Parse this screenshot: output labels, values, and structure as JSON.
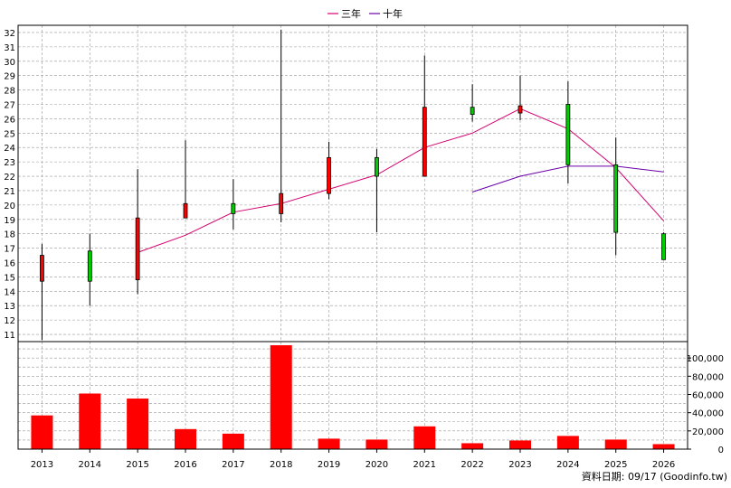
{
  "chart_data": {
    "type": "candlestick-with-volume",
    "legend": [
      {
        "label": "三年",
        "color": "#d4006f"
      },
      {
        "label": "十年",
        "color": "#6a00a8"
      }
    ],
    "years": [
      "2013",
      "2014",
      "2015",
      "2016",
      "2017",
      "2018",
      "2019",
      "2020",
      "2021",
      "2022",
      "2023",
      "2024",
      "2025",
      "2026"
    ],
    "candles": [
      {
        "year": "2013",
        "open": 16.5,
        "close": 14.7,
        "high": 17.3,
        "low": 10.6
      },
      {
        "year": "2014",
        "open": 14.7,
        "close": 16.8,
        "high": 18.0,
        "low": 13.0
      },
      {
        "year": "2015",
        "open": 19.1,
        "close": 14.8,
        "high": 22.5,
        "low": 13.8
      },
      {
        "year": "2016",
        "open": 20.1,
        "close": 19.1,
        "high": 24.5,
        "low": 19.1
      },
      {
        "year": "2017",
        "open": 19.4,
        "close": 20.1,
        "high": 21.8,
        "low": 18.3
      },
      {
        "year": "2018",
        "open": 20.8,
        "close": 19.4,
        "high": 32.2,
        "low": 18.8
      },
      {
        "year": "2019",
        "open": 23.3,
        "close": 20.8,
        "high": 24.4,
        "low": 20.4
      },
      {
        "year": "2020",
        "open": 22.0,
        "close": 23.3,
        "high": 23.9,
        "low": 18.1
      },
      {
        "year": "2021",
        "open": 26.8,
        "close": 22.0,
        "high": 30.4,
        "low": 22.0
      },
      {
        "year": "2022",
        "open": 26.3,
        "close": 26.8,
        "high": 28.4,
        "low": 25.8
      },
      {
        "year": "2023",
        "open": 26.9,
        "close": 26.4,
        "high": 29.0,
        "low": 25.9
      },
      {
        "year": "2024",
        "open": 22.8,
        "close": 27.0,
        "high": 28.6,
        "low": 21.5
      },
      {
        "year": "2025",
        "open": 18.1,
        "close": 22.8,
        "high": 24.7,
        "low": 16.5
      },
      {
        "year": "2026",
        "open": 16.2,
        "close": 18.0,
        "high": 18.1,
        "low": 16.2
      }
    ],
    "three_year_line": [
      {
        "year": "2015",
        "value": 16.7
      },
      {
        "year": "2016",
        "value": 17.9
      },
      {
        "year": "2017",
        "value": 19.5
      },
      {
        "year": "2018",
        "value": 20.1
      },
      {
        "year": "2019",
        "value": 21.1
      },
      {
        "year": "2020",
        "value": 22.1
      },
      {
        "year": "2021",
        "value": 24.0
      },
      {
        "year": "2022",
        "value": 25.0
      },
      {
        "year": "2023",
        "value": 26.7
      },
      {
        "year": "2024",
        "value": 25.3
      },
      {
        "year": "2025",
        "value": 22.6
      },
      {
        "year": "2026",
        "value": 18.9
      }
    ],
    "ten_year_line": [
      {
        "year": "2022",
        "value": 20.9
      },
      {
        "year": "2023",
        "value": 22.0
      },
      {
        "year": "2024",
        "value": 22.7
      },
      {
        "year": "2025",
        "value": 22.7
      },
      {
        "year": "2026",
        "value": 22.3
      }
    ],
    "price_axis": {
      "min": 10.5,
      "max": 32.5,
      "ticks": [
        11,
        12,
        13,
        14,
        15,
        16,
        17,
        18,
        19,
        20,
        21,
        22,
        23,
        24,
        25,
        26,
        27,
        28,
        29,
        30,
        31,
        32
      ]
    },
    "volume": [
      {
        "year": "2013",
        "value": 37000
      },
      {
        "year": "2014",
        "value": 61000
      },
      {
        "year": "2015",
        "value": 55500
      },
      {
        "year": "2016",
        "value": 22000
      },
      {
        "year": "2017",
        "value": 17000
      },
      {
        "year": "2018",
        "value": 114000
      },
      {
        "year": "2019",
        "value": 11500
      },
      {
        "year": "2020",
        "value": 10500
      },
      {
        "year": "2021",
        "value": 25000
      },
      {
        "year": "2022",
        "value": 6500
      },
      {
        "year": "2023",
        "value": 9500
      },
      {
        "year": "2024",
        "value": 14500
      },
      {
        "year": "2025",
        "value": 10500
      },
      {
        "year": "2026",
        "value": 5500
      }
    ],
    "volume_axis": {
      "min": 0,
      "max": 118000,
      "ticks": [
        {
          "value": 0,
          "label": "0"
        },
        {
          "value": 20000,
          "label": "20,000"
        },
        {
          "value": 40000,
          "label": "40,000"
        },
        {
          "value": 60000,
          "label": "60,000"
        },
        {
          "value": 80000,
          "label": "80,000"
        },
        {
          "value": 100000,
          "label": "100,000"
        }
      ]
    },
    "grid": true,
    "legend_position": "top-center",
    "colors": {
      "up": "#ff0000",
      "down": "#00cc00",
      "volume": "#ff0000",
      "grid": "#999999"
    }
  },
  "footer": {
    "text": "資料日期: 09/17  (Goodinfo.tw)"
  }
}
